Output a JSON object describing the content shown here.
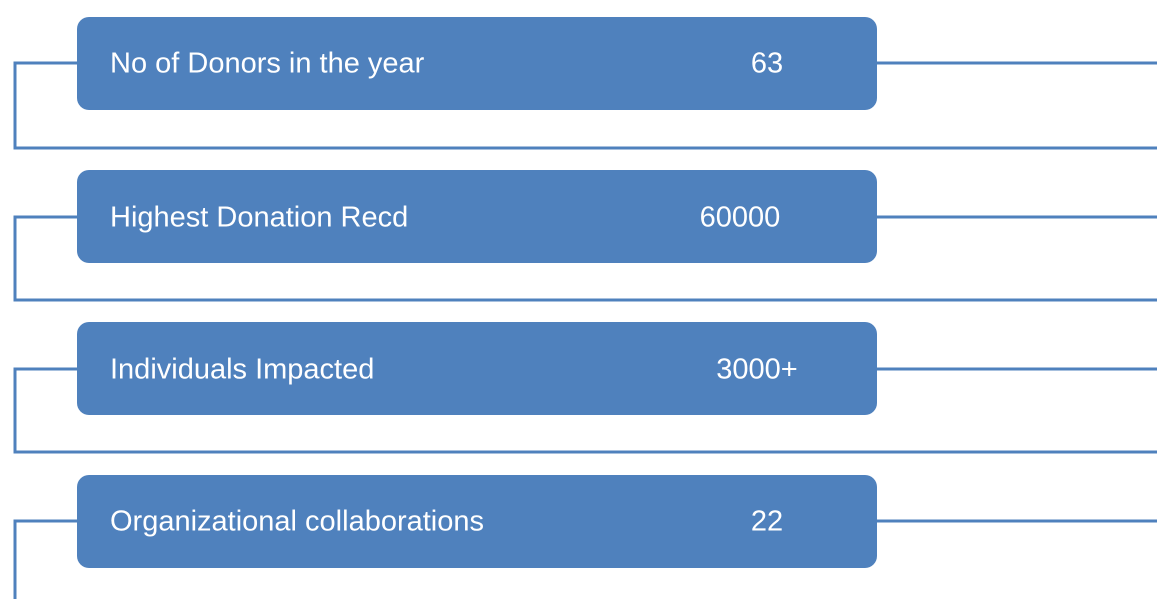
{
  "items": [
    {
      "label": "No of Donors in the year",
      "value": 63
    },
    {
      "label": "Highest Donation Recd",
      "value": 60000
    },
    {
      "label": "Individuals Impacted",
      "value": "3000+"
    },
    {
      "label": "Organizational collaborations",
      "value": 22
    }
  ]
}
